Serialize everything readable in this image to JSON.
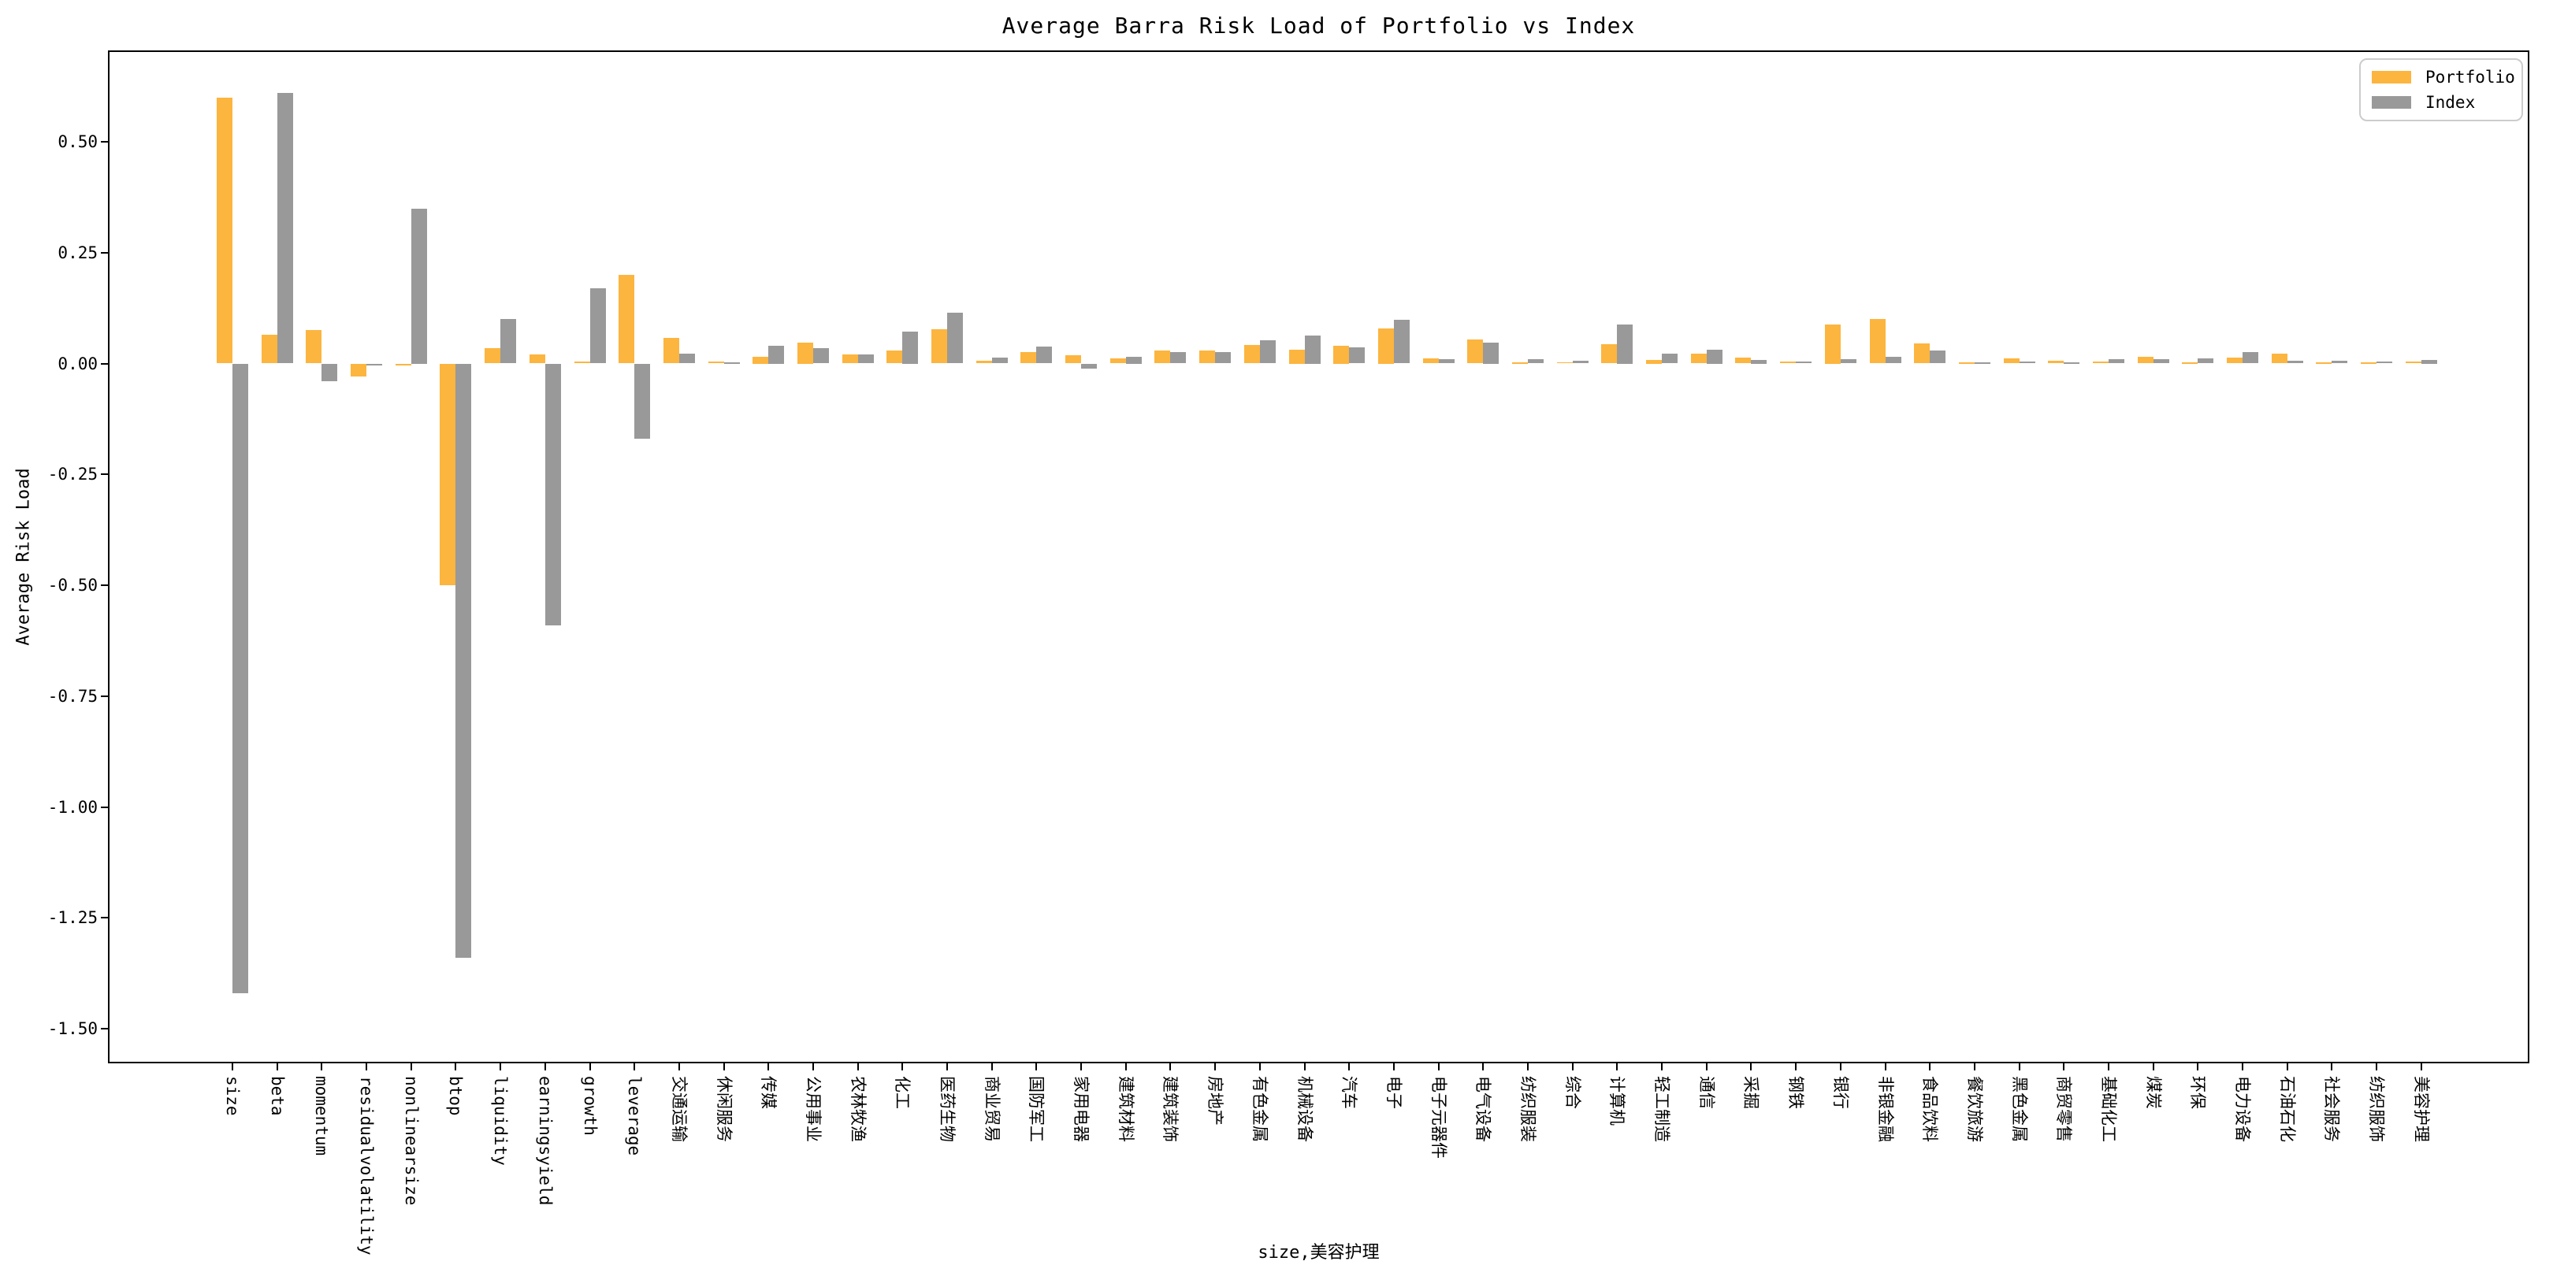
{
  "figure": {
    "title": "Average Barra Risk Load of Portfolio vs Index",
    "xlabel": "size,美容护理",
    "ylabel": "Average Risk Load",
    "background_color": "#ffffff",
    "spine_color": "#000000"
  },
  "legend": {
    "position": "upper-right",
    "border_color": "#cccccc",
    "entries": [
      {
        "label": "Portfolio",
        "color": "#fcb53f"
      },
      {
        "label": "Index",
        "color": "#999999"
      }
    ]
  },
  "chart_data": {
    "type": "bar",
    "title": "Average Barra Risk Load of Portfolio vs Index",
    "xlabel": "size,美容护理",
    "ylabel": "Average Risk Load",
    "grid": false,
    "legend_position": "upper right",
    "ylim": [
      -1.58,
      0.71
    ],
    "yticks": [
      0.5,
      0.25,
      0.0,
      -0.25,
      -0.5,
      -0.75,
      -1.0,
      -1.25,
      -1.5
    ],
    "ytick_labels": [
      "0.50",
      "0.25",
      "0.00",
      "-0.25",
      "-0.50",
      "-0.75",
      "-1.00",
      "-1.25",
      "-1.50"
    ],
    "categories": [
      "size",
      "beta",
      "momentum",
      "residualvolatility",
      "nonlinearsize",
      "btop",
      "liquidity",
      "earningsyield",
      "growth",
      "leverage",
      "交通运输",
      "休闲服务",
      "传媒",
      "公用事业",
      "农林牧渔",
      "化工",
      "医药生物",
      "商业贸易",
      "国防军工",
      "家用电器",
      "建筑材料",
      "建筑装饰",
      "房地产",
      "有色金属",
      "机械设备",
      "汽车",
      "电子",
      "电子元器件",
      "电气设备",
      "纺织服装",
      "综合",
      "计算机",
      "轻工制造",
      "通信",
      "采掘",
      "钢铁",
      "银行",
      "非银金融",
      "食品饮料",
      "餐饮旅游",
      "黑色金属",
      "商贸零售",
      "基础化工",
      "煤炭",
      "环保",
      "电力设备",
      "石油石化",
      "社会服务",
      "纺织服饰",
      "美容护理"
    ],
    "series": [
      {
        "name": "Portfolio",
        "color": "#fcb53f",
        "values": [
          0.6,
          0.065,
          0.075,
          -0.03,
          -0.005,
          -0.5,
          0.035,
          0.02,
          0.005,
          0.2,
          0.058,
          0.004,
          0.016,
          0.048,
          0.02,
          0.03,
          0.077,
          0.006,
          0.025,
          0.018,
          0.012,
          0.03,
          0.03,
          0.042,
          0.032,
          0.04,
          0.08,
          0.011,
          0.054,
          0.002,
          0.003,
          0.043,
          0.008,
          0.022,
          0.013,
          0.004,
          0.088,
          0.1,
          0.046,
          0.002,
          0.011,
          0.006,
          0.005,
          0.015,
          0.002,
          0.013,
          0.022,
          0.001,
          0.001,
          0.005
        ]
      },
      {
        "name": "Index",
        "color": "#999999",
        "values": [
          -1.42,
          0.61,
          -0.04,
          -0.005,
          0.35,
          -1.34,
          0.1,
          -0.59,
          0.17,
          -0.17,
          0.022,
          0.002,
          0.04,
          0.035,
          0.021,
          0.072,
          0.115,
          0.013,
          0.038,
          -0.012,
          0.016,
          0.025,
          0.026,
          0.052,
          0.063,
          0.037,
          0.098,
          0.009,
          0.048,
          0.01,
          0.007,
          0.088,
          0.022,
          0.031,
          0.008,
          0.005,
          0.009,
          0.015,
          0.03,
          0.001,
          0.005,
          0.002,
          0.009,
          0.009,
          0.012,
          0.025,
          0.007,
          0.007,
          0.005,
          0.008
        ]
      }
    ]
  }
}
